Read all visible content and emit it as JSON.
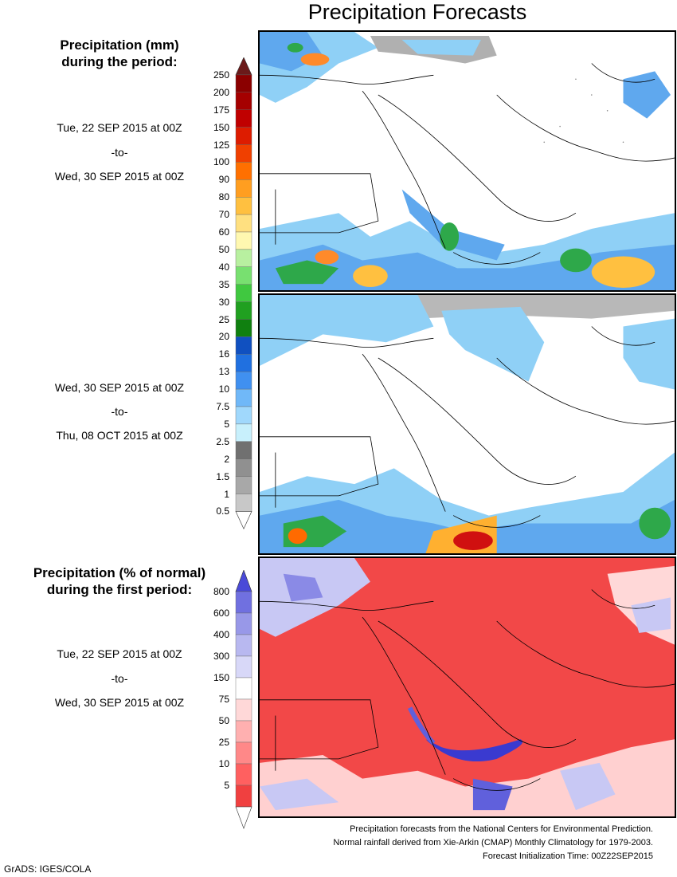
{
  "page": {
    "title": "Precipitation Forecasts",
    "grads_credit": "GrADS: IGES/COLA"
  },
  "left_panel": {
    "heading_mm_line1": "Precipitation (mm)",
    "heading_mm_line2": "during the period:",
    "period1": {
      "start": "Tue, 22 SEP 2015 at 00Z",
      "sep": "-to-",
      "end": "Wed, 30 SEP 2015 at 00Z"
    },
    "period2": {
      "start": "Wed, 30 SEP 2015 at 00Z",
      "sep": "-to-",
      "end": "Thu, 08 OCT 2015 at 00Z"
    },
    "heading_pct_line1": "Precipitation (% of normal)",
    "heading_pct_line2": "during the first period:",
    "period3": {
      "start": "Tue, 22 SEP 2015 at 00Z",
      "sep": "-to-",
      "end": "Wed, 30 SEP 2015 at 00Z"
    }
  },
  "colorbar_mm": {
    "labels": [
      "250",
      "200",
      "175",
      "150",
      "125",
      "100",
      "90",
      "80",
      "70",
      "60",
      "50",
      "40",
      "35",
      "30",
      "25",
      "20",
      "16",
      "13",
      "10",
      "7.5",
      "5",
      "2.5",
      "2",
      "1.5",
      "1",
      "0.5"
    ],
    "colors": [
      "#6b1a1a",
      "#8b0000",
      "#a50000",
      "#c00000",
      "#dd1c00",
      "#f04000",
      "#ff7000",
      "#ff9e20",
      "#ffc040",
      "#ffe080",
      "#fff8b0",
      "#b8f0a0",
      "#78e070",
      "#40c840",
      "#20a020",
      "#108010",
      "#1050c0",
      "#2070e0",
      "#4090f0",
      "#70b8f8",
      "#a0d8fc",
      "#c8f0fc",
      "#707070",
      "#909090",
      "#a8a8a8",
      "#c8c8c8"
    ]
  },
  "colorbar_pct": {
    "labels": [
      "800",
      "600",
      "400",
      "300",
      "150",
      "75",
      "50",
      "25",
      "10",
      "5"
    ],
    "colors": [
      "#4a4ad8",
      "#7070e0",
      "#9898e8",
      "#b8b8f0",
      "#d8d8f8",
      "#ffffff",
      "#ffd8d8",
      "#ffb0b0",
      "#ff8888",
      "#ff6060",
      "#f04040"
    ]
  },
  "footer": {
    "line1": "Precipitation forecasts from the National Centers for Environmental Prediction.",
    "line2": "Normal rainfall derived from Xie-Arkin (CMAP) Monthly Climatology for 1979-2003.",
    "line3": "Forecast Initialization Time: 00Z22SEP2015"
  }
}
